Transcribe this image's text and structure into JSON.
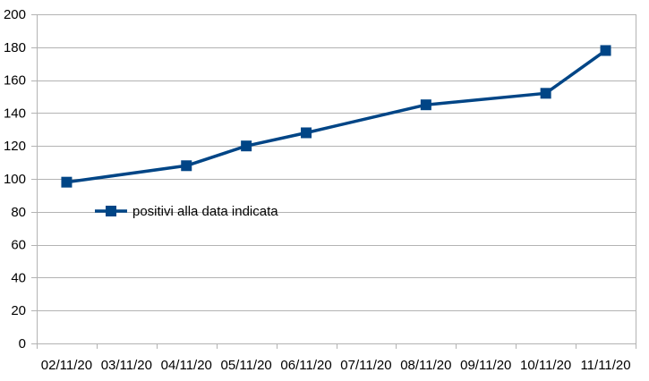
{
  "chart_data": {
    "type": "line",
    "title": "",
    "xlabel": "",
    "ylabel": "",
    "categories": [
      "02/11/20",
      "03/11/20",
      "04/11/20",
      "05/11/20",
      "06/11/20",
      "07/11/20",
      "08/11/20",
      "09/11/20",
      "10/11/20",
      "11/11/20"
    ],
    "series": [
      {
        "name": "positivi alla data indicata",
        "color": "#004586",
        "marker": "square",
        "points": [
          {
            "x": "02/11/20",
            "y": 98
          },
          {
            "x": "04/11/20",
            "y": 108
          },
          {
            "x": "05/11/20",
            "y": 120
          },
          {
            "x": "06/11/20",
            "y": 128
          },
          {
            "x": "08/11/20",
            "y": 145
          },
          {
            "x": "10/11/20",
            "y": 152
          },
          {
            "x": "11/11/20",
            "y": 178
          }
        ]
      }
    ],
    "ylim": [
      0,
      200
    ],
    "yticks": [
      0,
      20,
      40,
      60,
      80,
      100,
      120,
      140,
      160,
      180,
      200
    ],
    "grid": true,
    "legend_position": "left, inside plot"
  }
}
